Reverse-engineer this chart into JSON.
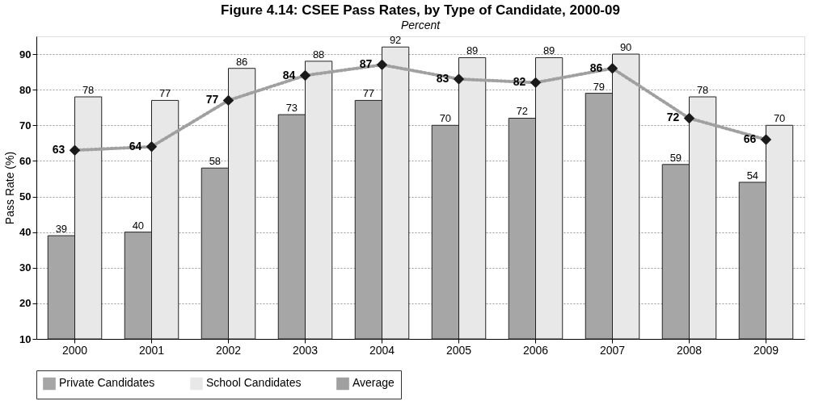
{
  "chart_data": {
    "type": "bar",
    "title": "Figure 4.14: CSEE Pass Rates, by Type of Candidate, 2000-09",
    "subtitle": "Percent",
    "ylabel": "Pass Rate (%)",
    "categories": [
      "2000",
      "2001",
      "2002",
      "2003",
      "2004",
      "2005",
      "2006",
      "2007",
      "2008",
      "2009"
    ],
    "series": [
      {
        "name": "Private Candidates",
        "color": "#a6a6a6",
        "values": [
          39,
          40,
          58,
          73,
          77,
          70,
          72,
          79,
          59,
          54
        ]
      },
      {
        "name": "School Candidates",
        "color": "#e8e8e8",
        "values": [
          78,
          77,
          86,
          88,
          92,
          89,
          89,
          90,
          78,
          70
        ]
      },
      {
        "name": "Average",
        "type": "line",
        "color": "#a0a0a0",
        "marker": "diamond",
        "line_style": "dotted",
        "values": [
          63,
          64,
          77,
          84,
          87,
          83,
          82,
          86,
          72,
          66
        ]
      }
    ],
    "ylim": [
      10,
      95
    ],
    "yticks": [
      10,
      20,
      30,
      40,
      50,
      60,
      70,
      80,
      90
    ],
    "grid": "y",
    "legend": "bottom",
    "data_labels": true
  }
}
